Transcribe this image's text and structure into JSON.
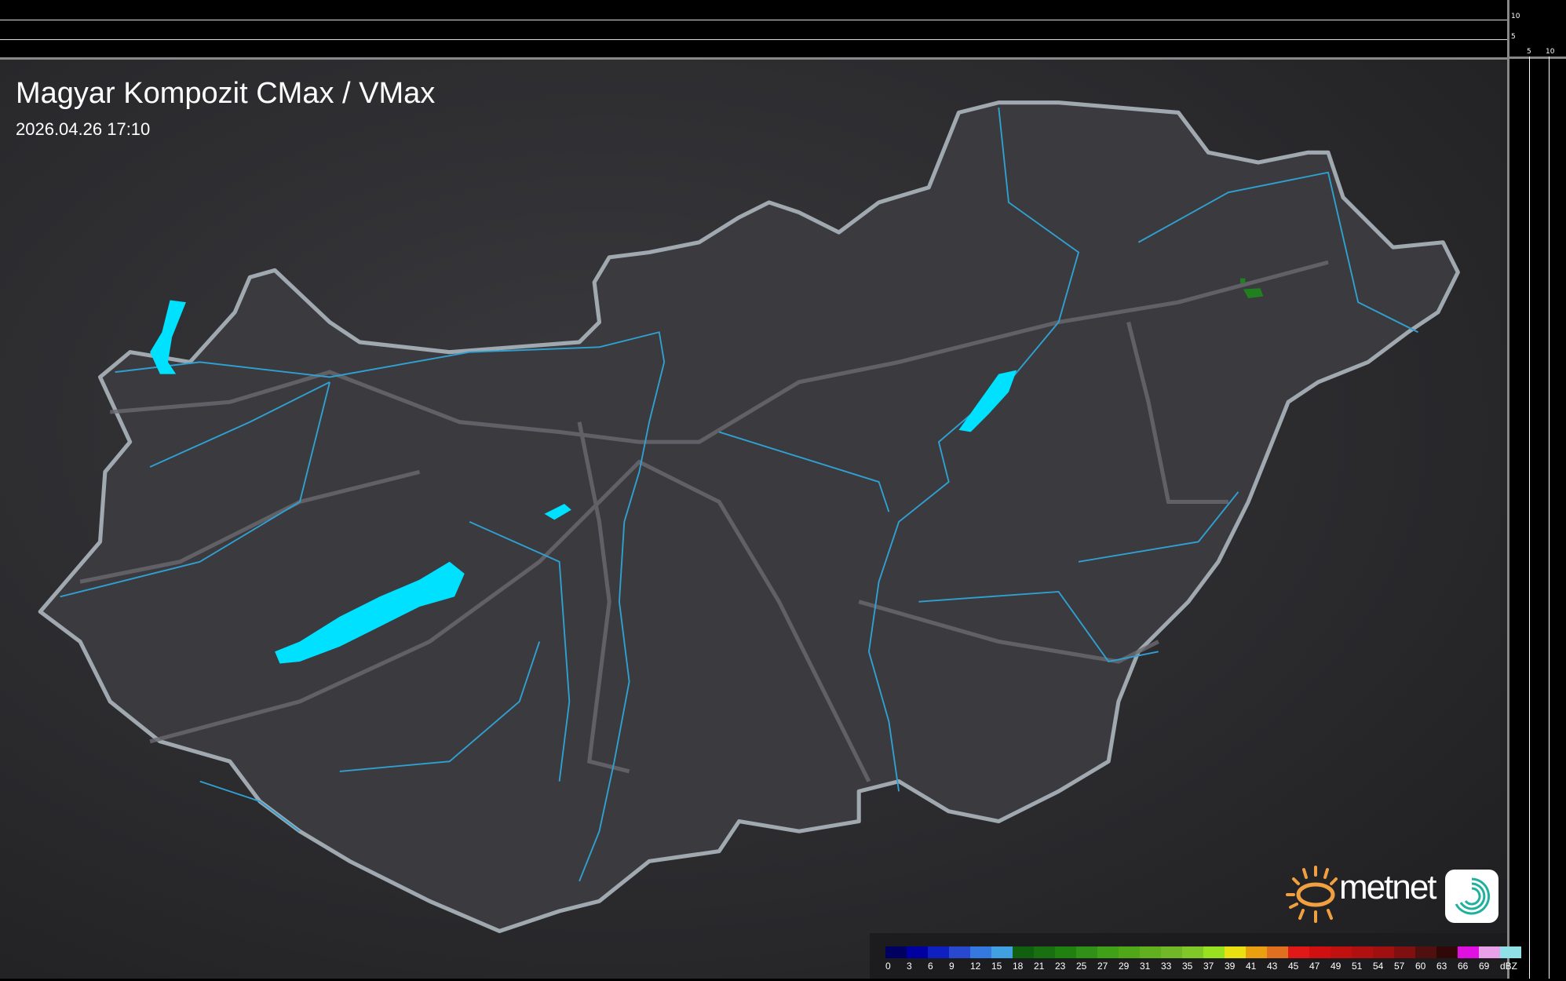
{
  "title": "Magyar Kompozit CMax / VMax",
  "timestamp": "2026.04.26 17:10",
  "logo": {
    "text": "metnet",
    "sun_color": "#f0a040",
    "app_icon_color": "#20b0a0"
  },
  "profile_axes": {
    "top_ticks": [
      "10",
      "5"
    ],
    "right_ticks": [
      "5",
      "10"
    ]
  },
  "legend": {
    "unit": "dBZ",
    "labels": [
      "0",
      "3",
      "6",
      "9",
      "12",
      "15",
      "18",
      "21",
      "23",
      "25",
      "27",
      "29",
      "31",
      "33",
      "35",
      "37",
      "39",
      "41",
      "43",
      "45",
      "47",
      "49",
      "51",
      "54",
      "57",
      "60",
      "63",
      "66",
      "69"
    ],
    "colors": [
      "#000060",
      "#0000a0",
      "#1020c0",
      "#2848d0",
      "#3478e0",
      "#40a0e0",
      "#106010",
      "#187010",
      "#208010",
      "#309018",
      "#40a018",
      "#50a818",
      "#60b020",
      "#70b828",
      "#80c828",
      "#98e020",
      "#e8e010",
      "#e8a010",
      "#e07020",
      "#e01818",
      "#d01010",
      "#c01010",
      "#b01010",
      "#a01010",
      "#801010",
      "#501010",
      "#300808",
      "#e010e0",
      "#e8a0e8",
      "#90e0e8"
    ]
  },
  "map_colors": {
    "country_fill": "#3a3a3f",
    "border": "#a0a8b0",
    "water": "#00e0ff",
    "river": "#30a0d0",
    "road": "#707074",
    "echo": "#208020"
  }
}
